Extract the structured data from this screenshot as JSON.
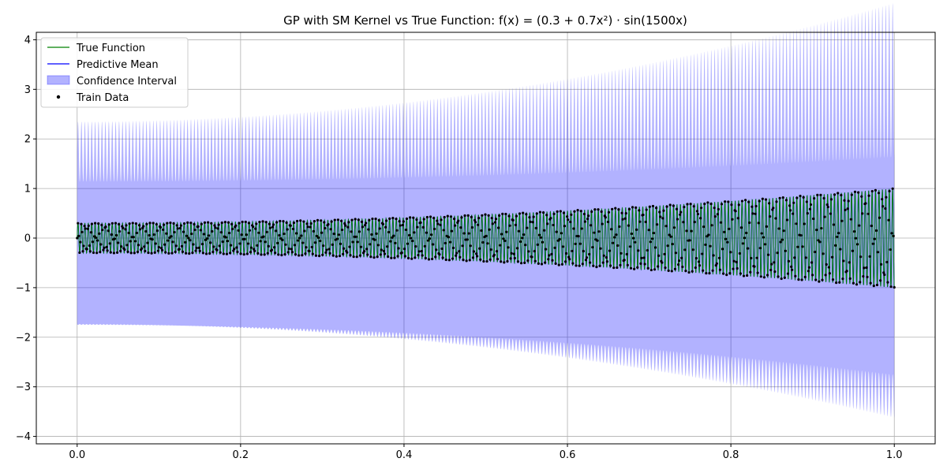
{
  "chart_data": {
    "type": "line",
    "title": "GP with SM Kernel vs True Function: f(x) = (0.3 + 0.7x²) · sin(1500x)",
    "xlabel": "",
    "ylabel": "",
    "xlim": [
      -0.05,
      1.05
    ],
    "ylim": [
      -4.15,
      4.15
    ],
    "xticks": [
      0.0,
      0.2,
      0.4,
      0.6,
      0.8,
      1.0
    ],
    "xtick_labels": [
      "0.0",
      "0.2",
      "0.4",
      "0.6",
      "0.8",
      "1.0"
    ],
    "yticks": [
      -4,
      -3,
      -2,
      -1,
      0,
      1,
      2,
      3,
      4
    ],
    "ytick_labels": [
      "−4",
      "−3",
      "−2",
      "−1",
      "0",
      "1",
      "2",
      "3",
      "4"
    ],
    "grid": true,
    "legend_position": "top-left",
    "function": {
      "expression": "(0.3 + 0.7*x^2) * sin(1500*x)",
      "amplitude": {
        "a": 0.3,
        "b": 0.7
      },
      "frequency": 1500,
      "domain": [
        0,
        1
      ]
    },
    "series": [
      {
        "name": "True Function",
        "kind": "line",
        "color": "#008000"
      },
      {
        "name": "Predictive Mean",
        "kind": "line",
        "color": "#0000ff"
      },
      {
        "name": "Confidence Interval",
        "kind": "band",
        "color": "#0000ff",
        "opacity": 0.3,
        "half_width_at_x0": 2.05,
        "half_width_at_x1": 3.75
      },
      {
        "name": "Train Data",
        "kind": "scatter",
        "color": "#000000",
        "count": 1000
      }
    ],
    "colors": {
      "axis": "#000000",
      "grid": "#b0b0b0",
      "background": "#ffffff"
    }
  }
}
